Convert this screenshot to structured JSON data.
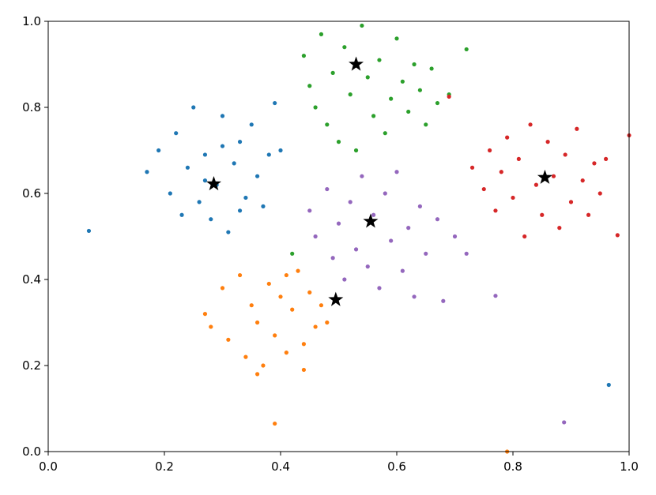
{
  "chart_data": {
    "type": "scatter",
    "xlim": [
      0,
      1
    ],
    "ylim": [
      0,
      1
    ],
    "xticks": [
      {
        "value": 0,
        "label": "0.0"
      },
      0.2,
      0.4,
      0.6,
      0.8,
      {
        "value": 1,
        "label": "1.0"
      }
    ],
    "yticks": [
      {
        "value": 0,
        "label": "0.0"
      },
      0.2,
      0.4,
      0.6,
      0.8,
      {
        "value": 1,
        "label": "1.0"
      }
    ],
    "grid": false,
    "series": [
      {
        "color": "#1f77b4",
        "marker": "dot",
        "x": [
          0.17,
          0.19,
          0.21,
          0.22,
          0.23,
          0.24,
          0.25,
          0.26,
          0.27,
          0.28,
          0.29,
          0.3,
          0.31,
          0.32,
          0.33,
          0.34,
          0.35,
          0.36,
          0.37,
          0.38,
          0.39,
          0.4,
          0.27,
          0.3,
          0.33,
          0.07,
          0.965
        ],
        "y": [
          0.65,
          0.7,
          0.6,
          0.74,
          0.55,
          0.66,
          0.8,
          0.58,
          0.69,
          0.54,
          0.62,
          0.78,
          0.51,
          0.67,
          0.72,
          0.59,
          0.76,
          0.64,
          0.57,
          0.69,
          0.81,
          0.7,
          0.63,
          0.71,
          0.56,
          0.513,
          0.155
        ]
      },
      {
        "color": "#ff7f0e",
        "marker": "dot",
        "x": [
          0.27,
          0.28,
          0.3,
          0.31,
          0.33,
          0.34,
          0.35,
          0.36,
          0.37,
          0.38,
          0.39,
          0.4,
          0.41,
          0.42,
          0.43,
          0.44,
          0.45,
          0.46,
          0.47,
          0.48,
          0.36,
          0.41,
          0.44,
          0.39,
          0.79
        ],
        "y": [
          0.32,
          0.29,
          0.38,
          0.26,
          0.41,
          0.22,
          0.34,
          0.3,
          0.2,
          0.39,
          0.27,
          0.36,
          0.23,
          0.33,
          0.42,
          0.25,
          0.37,
          0.29,
          0.34,
          0.3,
          0.18,
          0.41,
          0.19,
          0.065,
          0.0
        ]
      },
      {
        "color": "#2ca02c",
        "marker": "dot",
        "x": [
          0.44,
          0.45,
          0.46,
          0.47,
          0.48,
          0.49,
          0.5,
          0.51,
          0.52,
          0.53,
          0.54,
          0.55,
          0.56,
          0.57,
          0.58,
          0.59,
          0.6,
          0.61,
          0.62,
          0.63,
          0.64,
          0.65,
          0.66,
          0.67,
          0.69,
          0.72,
          0.42
        ],
        "y": [
          0.92,
          0.85,
          0.8,
          0.97,
          0.76,
          0.88,
          0.72,
          0.94,
          0.83,
          0.7,
          0.99,
          0.87,
          0.78,
          0.91,
          0.74,
          0.82,
          0.96,
          0.86,
          0.79,
          0.9,
          0.84,
          0.76,
          0.89,
          0.81,
          0.83,
          0.935,
          0.46
        ]
      },
      {
        "color": "#d62728",
        "marker": "dot",
        "x": [
          0.73,
          0.75,
          0.76,
          0.77,
          0.78,
          0.79,
          0.8,
          0.81,
          0.82,
          0.83,
          0.84,
          0.85,
          0.86,
          0.87,
          0.88,
          0.89,
          0.9,
          0.91,
          0.92,
          0.93,
          0.94,
          0.95,
          0.96,
          0.98,
          1.0,
          0.69
        ],
        "y": [
          0.66,
          0.61,
          0.7,
          0.56,
          0.65,
          0.73,
          0.59,
          0.68,
          0.5,
          0.76,
          0.62,
          0.55,
          0.72,
          0.64,
          0.52,
          0.69,
          0.58,
          0.75,
          0.63,
          0.55,
          0.67,
          0.6,
          0.68,
          0.503,
          0.735,
          0.825
        ]
      },
      {
        "color": "#9467bd",
        "marker": "dot",
        "x": [
          0.45,
          0.46,
          0.48,
          0.49,
          0.5,
          0.51,
          0.52,
          0.53,
          0.54,
          0.55,
          0.56,
          0.57,
          0.58,
          0.59,
          0.6,
          0.61,
          0.62,
          0.63,
          0.64,
          0.65,
          0.67,
          0.68,
          0.7,
          0.72,
          0.77,
          0.888
        ],
        "y": [
          0.56,
          0.5,
          0.61,
          0.45,
          0.53,
          0.4,
          0.58,
          0.47,
          0.64,
          0.43,
          0.55,
          0.38,
          0.6,
          0.49,
          0.65,
          0.42,
          0.52,
          0.36,
          0.57,
          0.46,
          0.54,
          0.35,
          0.5,
          0.46,
          0.362,
          0.068
        ]
      },
      {
        "color": "#000000",
        "marker": "star",
        "x": [
          0.285,
          0.495,
          0.53,
          0.555,
          0.855
        ],
        "y": [
          0.622,
          0.353,
          0.9,
          0.535,
          0.637
        ]
      }
    ]
  }
}
